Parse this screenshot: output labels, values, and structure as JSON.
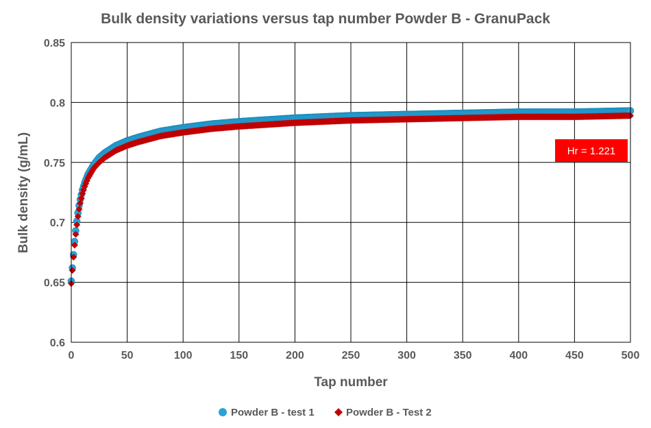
{
  "chart_data": {
    "type": "scatter",
    "title": "Bulk density variations versus tap number Powder B - GranuPack",
    "xlabel": "Tap number",
    "ylabel": "Bulk density (g/mL)",
    "xlim": [
      0,
      500
    ],
    "ylim": [
      0.6,
      0.85
    ],
    "xticks": [
      0,
      50,
      100,
      150,
      200,
      250,
      300,
      350,
      400,
      450,
      500
    ],
    "yticks": [
      0.6,
      0.65,
      0.7,
      0.75,
      0.8,
      0.85
    ],
    "xtick_labels": [
      "0",
      "50",
      "100",
      "150",
      "200",
      "250",
      "300",
      "350",
      "400",
      "450",
      "500"
    ],
    "ytick_labels": [
      "0.6",
      "0.65",
      "0.7",
      "0.75",
      "0.8",
      "0.85"
    ],
    "grid": true,
    "legend_position": "bottom",
    "series": [
      {
        "name": "Powder B - test 1",
        "color": "#29a3d6",
        "marker": "circle",
        "x": [
          0,
          1,
          2,
          3,
          4,
          5,
          6,
          7,
          8,
          10,
          12,
          15,
          20,
          25,
          30,
          40,
          50,
          60,
          80,
          100,
          125,
          150,
          200,
          250,
          300,
          350,
          400,
          450,
          500
        ],
        "y": [
          0.651,
          0.662,
          0.673,
          0.684,
          0.693,
          0.701,
          0.708,
          0.714,
          0.719,
          0.727,
          0.733,
          0.74,
          0.748,
          0.754,
          0.758,
          0.764,
          0.768,
          0.771,
          0.776,
          0.779,
          0.782,
          0.784,
          0.787,
          0.789,
          0.79,
          0.791,
          0.792,
          0.792,
          0.793
        ]
      },
      {
        "name": "Powder B - Test 2",
        "color": "#c00000",
        "marker": "diamond",
        "x": [
          0,
          1,
          2,
          3,
          4,
          5,
          6,
          7,
          8,
          10,
          12,
          15,
          20,
          25,
          30,
          40,
          50,
          60,
          80,
          100,
          125,
          150,
          200,
          250,
          300,
          350,
          400,
          450,
          500
        ],
        "y": [
          0.649,
          0.66,
          0.671,
          0.681,
          0.69,
          0.698,
          0.705,
          0.711,
          0.716,
          0.724,
          0.73,
          0.737,
          0.745,
          0.75,
          0.754,
          0.76,
          0.764,
          0.767,
          0.772,
          0.775,
          0.778,
          0.78,
          0.783,
          0.785,
          0.786,
          0.787,
          0.788,
          0.788,
          0.789
        ]
      }
    ],
    "annotation": {
      "text": "Hr = 1.221",
      "background": "#ff0000",
      "text_color": "#ffffff"
    }
  }
}
